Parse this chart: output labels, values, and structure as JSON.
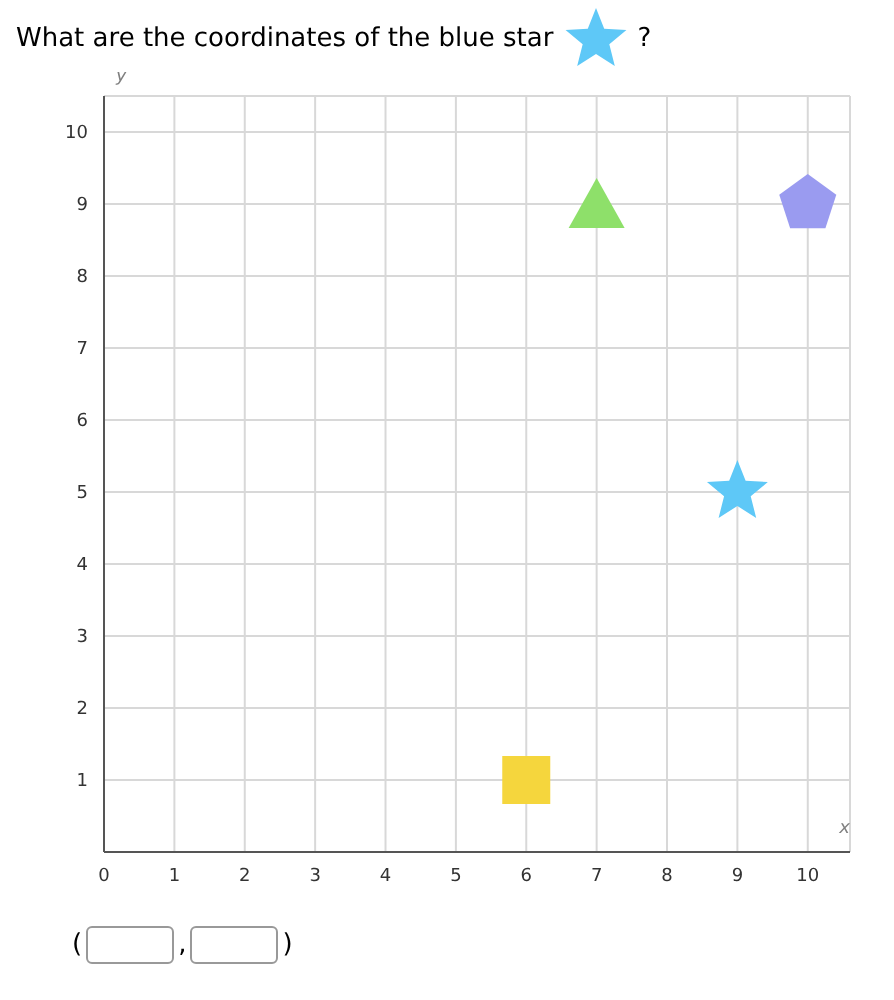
{
  "chart_data": {
    "type": "scatter",
    "title": "What are the coordinates of the blue star",
    "annotations": [
      "?",
      "(",
      ",",
      ")"
    ],
    "xlabel": "x",
    "ylabel": "y",
    "xlim": [
      0,
      10.6
    ],
    "ylim": [
      0,
      10.5
    ],
    "xticks": [
      0,
      1,
      2,
      3,
      4,
      5,
      6,
      7,
      8,
      9,
      10
    ],
    "yticks": [
      {
        "value": 0,
        "label": null
      },
      1,
      2,
      3,
      4,
      5,
      6,
      7,
      8,
      9,
      10
    ],
    "grid": true,
    "series": [
      {
        "x": [
          6
        ],
        "values": [
          1
        ],
        "color": "#f5d63d",
        "marker": "square"
      },
      {
        "x": [
          7
        ],
        "values": [
          9
        ],
        "color": "#8ee06a",
        "marker": "triangle"
      },
      {
        "x": [
          9
        ],
        "values": [
          5
        ],
        "color": "#5ec8f7",
        "marker": "star"
      },
      {
        "x": [
          10
        ],
        "values": [
          9
        ],
        "color": "#9a9bf0"
      }
    ]
  }
}
